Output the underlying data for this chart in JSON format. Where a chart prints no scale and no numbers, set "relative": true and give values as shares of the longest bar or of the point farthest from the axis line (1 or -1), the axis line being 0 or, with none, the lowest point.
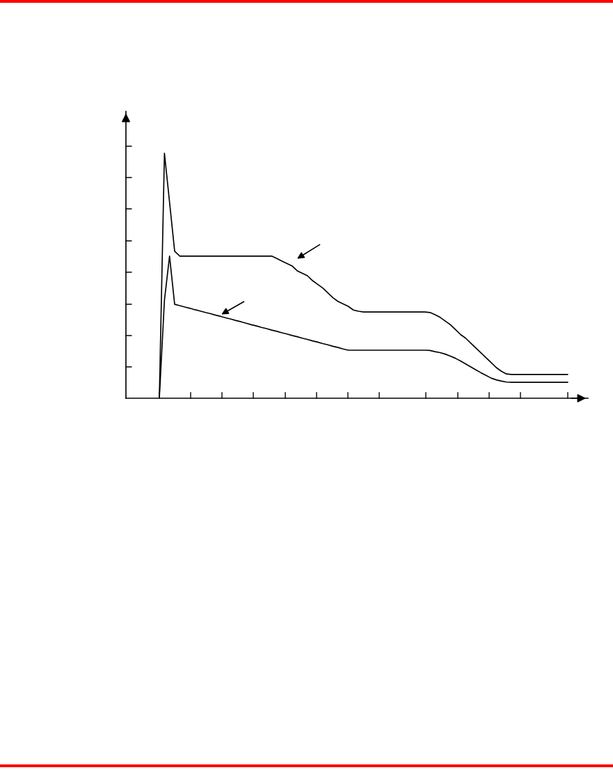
{
  "chart_data": {
    "type": "line",
    "relative": true,
    "grid": false,
    "legend": false,
    "categories": [
      null,
      null,
      null,
      null,
      null,
      null,
      null,
      null,
      null,
      null,
      null,
      null,
      null,
      null,
      null,
      null,
      null,
      null,
      null,
      null,
      null,
      null,
      null,
      null,
      null,
      null,
      null,
      null,
      null,
      null,
      null,
      null,
      null,
      null,
      null,
      null,
      null,
      null,
      null,
      null,
      null,
      null,
      null,
      null,
      null,
      null,
      null,
      null,
      null,
      null,
      null,
      null,
      null,
      null,
      null,
      null,
      null,
      null,
      null,
      null,
      null,
      null,
      null,
      null,
      null,
      null,
      null,
      null,
      null,
      null,
      null,
      null,
      null,
      null,
      null,
      null,
      null,
      null,
      null,
      null,
      null
    ],
    "series": [
      {
        "color": "#000000",
        "line_style": "solid",
        "values": [
          0,
          1.0,
          0.8,
          0.6,
          0.58,
          0.58,
          0.58,
          0.58,
          0.58,
          0.58,
          0.58,
          0.58,
          0.58,
          0.58,
          0.58,
          0.58,
          0.58,
          0.58,
          0.58,
          0.58,
          0.58,
          0.58,
          0.58,
          0.57,
          0.56,
          0.55,
          0.54,
          0.52,
          0.51,
          0.5,
          0.48,
          0.465,
          0.45,
          0.43,
          0.41,
          0.395,
          0.385,
          0.375,
          0.36,
          0.355,
          0.352,
          0.352,
          0.352,
          0.352,
          0.352,
          0.352,
          0.352,
          0.352,
          0.352,
          0.352,
          0.352,
          0.352,
          0.352,
          0.35,
          0.341,
          0.33,
          0.315,
          0.3,
          0.28,
          0.26,
          0.245,
          0.225,
          0.205,
          0.185,
          0.165,
          0.145,
          0.125,
          0.11,
          0.099,
          0.097,
          0.097,
          0.097,
          0.097,
          0.097,
          0.097,
          0.097,
          0.097,
          0.097,
          0.097,
          0.097,
          0.097
        ]
      },
      {
        "color": "#000000",
        "line_style": "solid",
        "values": [
          0,
          0.4,
          0.58,
          0.383,
          0.378,
          0.372,
          0.367,
          0.361,
          0.356,
          0.35,
          0.345,
          0.339,
          0.334,
          0.328,
          0.323,
          0.317,
          0.312,
          0.306,
          0.3,
          0.295,
          0.289,
          0.284,
          0.278,
          0.273,
          0.267,
          0.262,
          0.256,
          0.251,
          0.245,
          0.24,
          0.234,
          0.229,
          0.223,
          0.218,
          0.212,
          0.207,
          0.201,
          0.196,
          0.196,
          0.196,
          0.196,
          0.196,
          0.196,
          0.196,
          0.196,
          0.196,
          0.196,
          0.196,
          0.196,
          0.196,
          0.196,
          0.196,
          0.196,
          0.195,
          0.19,
          0.186,
          0.18,
          0.172,
          0.163,
          0.152,
          0.14,
          0.128,
          0.116,
          0.104,
          0.093,
          0.082,
          0.075,
          0.07,
          0.066,
          0.065,
          0.065,
          0.065,
          0.065,
          0.065,
          0.065,
          0.065,
          0.065,
          0.065,
          0.065,
          0.065,
          0.065
        ]
      }
    ]
  }
}
